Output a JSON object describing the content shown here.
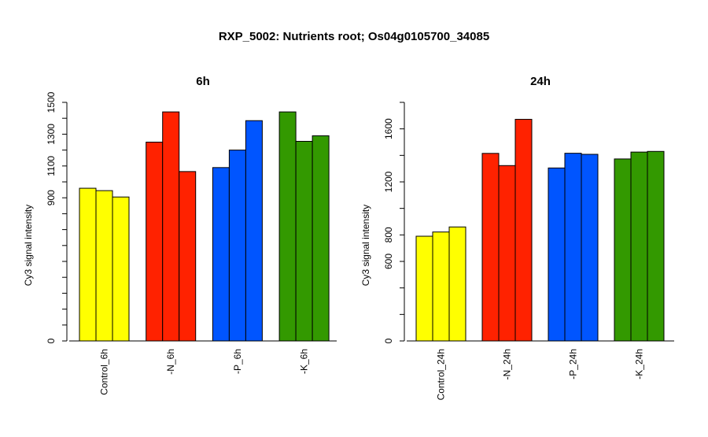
{
  "page_title": "RXP_5002: Nutrients root; Os04g0105700_34085",
  "chart_data": [
    {
      "type": "bar",
      "title": "6h",
      "ylabel": "Cy3 signal intensity",
      "xlabel": "",
      "ylim": [
        0,
        1500
      ],
      "yticks": [
        0,
        900,
        1100,
        1300,
        1500
      ],
      "categories": [
        "Control_6h",
        "-N_6h",
        "-P_6h",
        "-K_6h"
      ],
      "colors": [
        "#ffff00",
        "#ff2200",
        "#0055ff",
        "#339900"
      ],
      "replicates": [
        [
          960,
          945,
          905
        ],
        [
          1250,
          1440,
          1065
        ],
        [
          1090,
          1200,
          1385
        ],
        [
          1440,
          1255,
          1290
        ]
      ],
      "grid": false,
      "legend": "none"
    },
    {
      "type": "bar",
      "title": "24h",
      "ylabel": "Cy3 signal intensity",
      "xlabel": "",
      "ylim": [
        0,
        1800
      ],
      "yticks": [
        0,
        600,
        800,
        1200,
        1600
      ],
      "categories": [
        "Control_24h",
        "-N_24h",
        "-P_24h",
        "-K_24h"
      ],
      "colors": [
        "#ffff00",
        "#ff2200",
        "#0055ff",
        "#339900"
      ],
      "replicates": [
        [
          790,
          822,
          860
        ],
        [
          1415,
          1323,
          1672
        ],
        [
          1305,
          1416,
          1408
        ],
        [
          1373,
          1425,
          1430
        ]
      ],
      "grid": false,
      "legend": "none"
    }
  ]
}
